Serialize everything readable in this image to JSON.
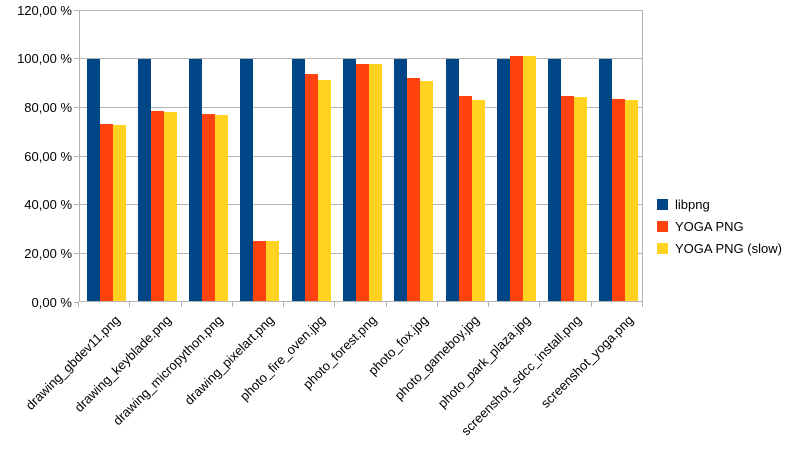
{
  "chart_data": {
    "type": "bar",
    "title": "",
    "categories": [
      "drawing_gbdev11.png",
      "drawing_keyblade.png",
      "drawing_micropython.png",
      "drawing_pixelart.png",
      "photo_fire_oven.jpg",
      "photo_forest.png",
      "photo_fox.jpg",
      "photo_gameboy.jpg",
      "photo_park_plaza.jpg",
      "screenshot_sdcc_install.png",
      "screenshot_yoga.png"
    ],
    "series": [
      {
        "name": "libpng",
        "color": "#004586",
        "values": [
          100,
          100,
          100,
          100,
          100,
          100,
          100,
          100,
          100,
          100,
          100
        ]
      },
      {
        "name": "YOGA PNG",
        "color": "#FF420E",
        "values": [
          73.0,
          78.4,
          77.1,
          25.1,
          93.6,
          98.0,
          92.1,
          84.6,
          101.3,
          84.7,
          83.6
        ]
      },
      {
        "name": "YOGA PNG (slow)",
        "color": "#FFD320",
        "values": [
          72.8,
          78.0,
          77.0,
          24.9,
          91.3,
          97.7,
          90.9,
          83.1,
          101.0,
          84.4,
          83.0
        ]
      }
    ],
    "ylim": [
      0,
      120
    ],
    "ytick_step": 20,
    "ytick_labels": [
      "0,00 %",
      "20,00 %",
      "40,00 %",
      "60,00 %",
      "80,00 %",
      "100,00 %",
      "120,00 %"
    ],
    "grid": true,
    "legend_position": "right-middle",
    "colors": {
      "gridline": "#b3b3b3",
      "axis": "#b3b3b3",
      "text": "#000000",
      "background": "#ffffff"
    }
  }
}
